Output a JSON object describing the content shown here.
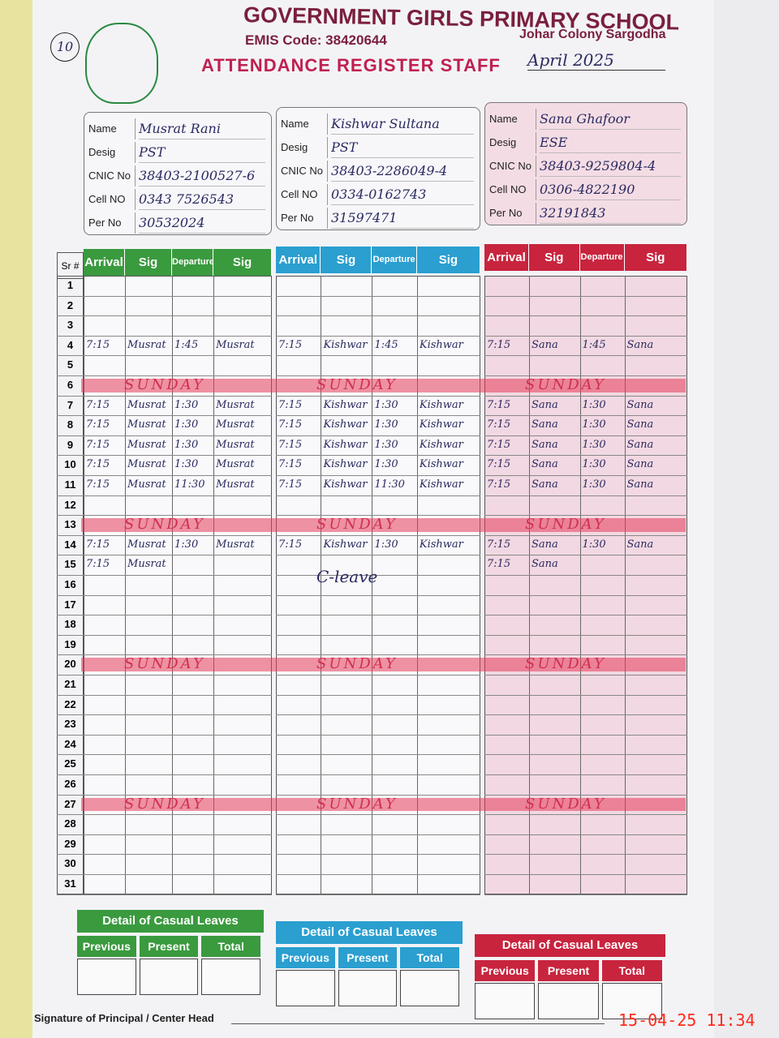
{
  "header": {
    "page_number": "10",
    "school": "GOVERNMENT GIRLS PRIMARY SCHOOL",
    "emis": "EMIS Code: 38420644",
    "location": "Johar Colony Sargodha",
    "register": "ATTENDANCE REGISTER STAFF",
    "month": "April 2025"
  },
  "card_labels": [
    "Name",
    "Desig",
    "CNIC No",
    "Cell NO",
    "Per No"
  ],
  "staff": [
    {
      "color": "#3a9a3e",
      "card_color": "#4a4a8a",
      "fields": [
        "Musrat Rani",
        "PST",
        "38403-2100527-6",
        "0343 7526543",
        "30532024"
      ]
    },
    {
      "color": "#2a9fd0",
      "card_color": "#4a4a8a",
      "fields": [
        "Kishwar Sultana",
        "PST",
        "38403-2286049-4",
        "0334-0162743",
        "31597471"
      ]
    },
    {
      "color": "#c8243e",
      "card_color": "#7a2a4a",
      "fields": [
        "Sana Ghafoor",
        "ESE",
        "38403-9259804-4",
        "0306-4822190",
        "32191843"
      ]
    }
  ],
  "table": {
    "sr_header": "Sr #",
    "columns": [
      "Arrival",
      "Sig",
      "Departure",
      "Sig"
    ],
    "rows": [
      {
        "sr": "1"
      },
      {
        "sr": "2"
      },
      {
        "sr": "3"
      },
      {
        "sr": "4",
        "entries": [
          [
            "7:15",
            "Musrat",
            "1:45",
            "Musrat"
          ],
          [
            "7:15",
            "Kishwar",
            "1:45",
            "Kishwar"
          ],
          [
            "7:15",
            "Sana",
            "1:45",
            "Sana"
          ]
        ]
      },
      {
        "sr": "5"
      },
      {
        "sr": "6",
        "note": "SUNDAY"
      },
      {
        "sr": "7",
        "entries": [
          [
            "7:15",
            "Musrat",
            "1:30",
            "Musrat"
          ],
          [
            "7:15",
            "Kishwar",
            "1:30",
            "Kishwar"
          ],
          [
            "7:15",
            "Sana",
            "1:30",
            "Sana"
          ]
        ]
      },
      {
        "sr": "8",
        "entries": [
          [
            "7:15",
            "Musrat",
            "1:30",
            "Musrat"
          ],
          [
            "7:15",
            "Kishwar",
            "1:30",
            "Kishwar"
          ],
          [
            "7:15",
            "Sana",
            "1:30",
            "Sana"
          ]
        ]
      },
      {
        "sr": "9",
        "entries": [
          [
            "7:15",
            "Musrat",
            "1:30",
            "Musrat"
          ],
          [
            "7:15",
            "Kishwar",
            "1:30",
            "Kishwar"
          ],
          [
            "7:15",
            "Sana",
            "1:30",
            "Sana"
          ]
        ]
      },
      {
        "sr": "10",
        "entries": [
          [
            "7:15",
            "Musrat",
            "1:30",
            "Musrat"
          ],
          [
            "7:15",
            "Kishwar",
            "1:30",
            "Kishwar"
          ],
          [
            "7:15",
            "Sana",
            "1:30",
            "Sana"
          ]
        ]
      },
      {
        "sr": "11",
        "entries": [
          [
            "7:15",
            "Musrat",
            "11:30",
            "Musrat"
          ],
          [
            "7:15",
            "Kishwar",
            "11:30",
            "Kishwar"
          ],
          [
            "7:15",
            "Sana",
            "1:30",
            "Sana"
          ]
        ]
      },
      {
        "sr": "12"
      },
      {
        "sr": "13",
        "note": "SUNDAY"
      },
      {
        "sr": "14",
        "entries": [
          [
            "7:15",
            "Musrat",
            "1:30",
            "Musrat"
          ],
          [
            "7:15",
            "Kishwar",
            "1:30",
            "Kishwar"
          ],
          [
            "7:15",
            "Sana",
            "1:30",
            "Sana"
          ]
        ]
      },
      {
        "sr": "15",
        "entries": [
          [
            "7:15",
            "Musrat"
          ],
          "C-leave",
          [
            "7:15",
            "Sana"
          ]
        ]
      },
      {
        "sr": "16"
      },
      {
        "sr": "17"
      },
      {
        "sr": "18"
      },
      {
        "sr": "19"
      },
      {
        "sr": "20",
        "note": "SUNDAY"
      },
      {
        "sr": "21"
      },
      {
        "sr": "22"
      },
      {
        "sr": "23"
      },
      {
        "sr": "24"
      },
      {
        "sr": "25"
      },
      {
        "sr": "26"
      },
      {
        "sr": "27",
        "note": "SUNDAY"
      },
      {
        "sr": "28"
      },
      {
        "sr": "29"
      },
      {
        "sr": "30"
      },
      {
        "sr": "31"
      }
    ]
  },
  "leaves": {
    "title": "Detail of Casual Leaves",
    "columns": [
      "Previous",
      "Present",
      "Total"
    ]
  },
  "footer": {
    "signature": "Signature of Principal / Center Head",
    "timestamp": "15-04-25 11:34"
  }
}
